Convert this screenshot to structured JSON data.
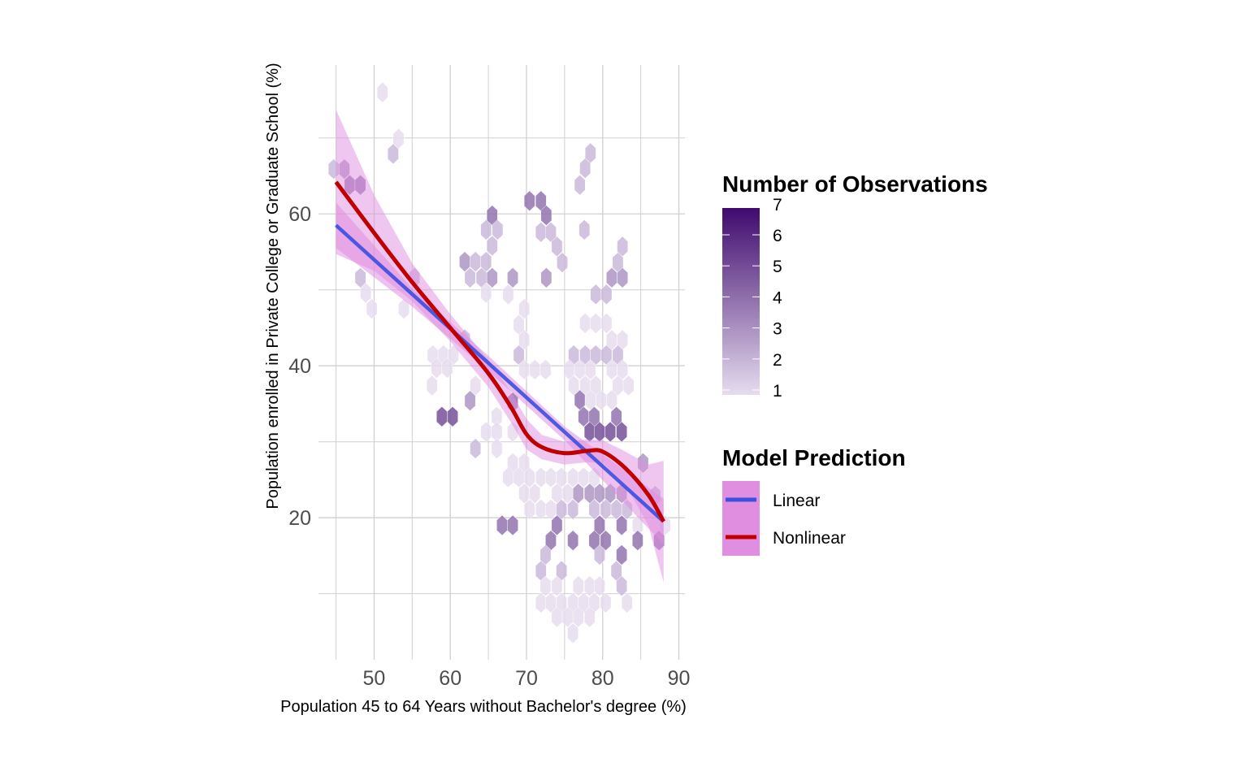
{
  "chart_data": {
    "type": "hexbin-scatter",
    "xlabel": "Population 45 to 64 Years without Bachelor's degree (%)",
    "ylabel": "Population enrolled in Private College or Graduate School (%)",
    "xlim": [
      42.7,
      90.8
    ],
    "ylim": [
      1.3,
      79.6
    ],
    "xticks": [
      50,
      60,
      70,
      80,
      90
    ],
    "yticks": [
      20,
      40,
      60
    ],
    "grid": true,
    "hexbins": [
      [
        51.1,
        76.0,
        1
      ],
      [
        53.2,
        69.9,
        1
      ],
      [
        52.5,
        67.9,
        2
      ],
      [
        44.7,
        65.9,
        2
      ],
      [
        46.1,
        65.9,
        3
      ],
      [
        46.8,
        63.8,
        4
      ],
      [
        48.2,
        63.8,
        4
      ],
      [
        48.2,
        51.6,
        2
      ],
      [
        48.9,
        49.6,
        1
      ],
      [
        49.7,
        47.5,
        1
      ],
      [
        53.9,
        47.5,
        1
      ],
      [
        55.3,
        51.6,
        2
      ],
      [
        65.5,
        59.8,
        4
      ],
      [
        64.7,
        57.9,
        2
      ],
      [
        66.2,
        57.9,
        2
      ],
      [
        65.5,
        55.8,
        2
      ],
      [
        61.9,
        53.7,
        3
      ],
      [
        63.3,
        53.7,
        2
      ],
      [
        64.7,
        53.7,
        2
      ],
      [
        62.6,
        51.6,
        2
      ],
      [
        64.1,
        51.6,
        2
      ],
      [
        65.5,
        51.6,
        3
      ],
      [
        64.7,
        49.6,
        1
      ],
      [
        57.7,
        41.4,
        1
      ],
      [
        59.1,
        41.4,
        1
      ],
      [
        60.4,
        41.4,
        1
      ],
      [
        58.2,
        39.7,
        1
      ],
      [
        59.6,
        39.7,
        1
      ],
      [
        61.9,
        43.5,
        2
      ],
      [
        57.6,
        37.4,
        1
      ],
      [
        62.6,
        35.4,
        3
      ],
      [
        58.9,
        33.3,
        5
      ],
      [
        60.3,
        33.3,
        5
      ],
      [
        63.3,
        29.1,
        2
      ],
      [
        63.3,
        37.4,
        1
      ],
      [
        66.1,
        33.3,
        1
      ],
      [
        64.7,
        31.3,
        1
      ],
      [
        66.1,
        31.3,
        1
      ],
      [
        68.2,
        31.3,
        1
      ],
      [
        66.1,
        29.1,
        1
      ],
      [
        68.2,
        35.2,
        4
      ],
      [
        78.4,
        68.0,
        2
      ],
      [
        77.7,
        66.0,
        2
      ],
      [
        77.0,
        63.8,
        2
      ],
      [
        70.4,
        61.7,
        4
      ],
      [
        71.9,
        61.7,
        4
      ],
      [
        72.6,
        59.8,
        4
      ],
      [
        71.9,
        57.6,
        2
      ],
      [
        73.2,
        57.6,
        2
      ],
      [
        74.0,
        55.7,
        2
      ],
      [
        74.7,
        53.6,
        2
      ],
      [
        77.6,
        57.9,
        2
      ],
      [
        82.6,
        55.7,
        2
      ],
      [
        82.0,
        53.6,
        2
      ],
      [
        81.2,
        51.6,
        3
      ],
      [
        82.6,
        51.6,
        3
      ],
      [
        68.2,
        51.6,
        3
      ],
      [
        72.6,
        51.6,
        3
      ],
      [
        67.6,
        49.4,
        1
      ],
      [
        79.1,
        49.4,
        2
      ],
      [
        80.5,
        49.4,
        2
      ],
      [
        69.7,
        47.5,
        1
      ],
      [
        69.0,
        45.4,
        1
      ],
      [
        69.7,
        43.4,
        1
      ],
      [
        69.0,
        41.4,
        2
      ],
      [
        69.7,
        39.5,
        1
      ],
      [
        71.1,
        39.5,
        1
      ],
      [
        72.5,
        39.5,
        1
      ],
      [
        77.7,
        45.6,
        1
      ],
      [
        79.1,
        45.6,
        1
      ],
      [
        80.5,
        45.6,
        1
      ],
      [
        81.2,
        43.4,
        1
      ],
      [
        82.6,
        43.4,
        1
      ],
      [
        76.2,
        41.4,
        2
      ],
      [
        77.7,
        41.4,
        2
      ],
      [
        79.1,
        41.4,
        2
      ],
      [
        80.5,
        41.4,
        2
      ],
      [
        82.0,
        41.4,
        2
      ],
      [
        75.6,
        39.5,
        1
      ],
      [
        77.0,
        39.5,
        1
      ],
      [
        78.4,
        39.5,
        1
      ],
      [
        81.2,
        39.5,
        1
      ],
      [
        82.6,
        39.5,
        1
      ],
      [
        76.2,
        37.4,
        1
      ],
      [
        77.7,
        37.4,
        1
      ],
      [
        79.1,
        37.4,
        1
      ],
      [
        82.0,
        37.4,
        1
      ],
      [
        83.4,
        37.4,
        1
      ],
      [
        77.0,
        35.5,
        4
      ],
      [
        78.4,
        35.5,
        1
      ],
      [
        79.8,
        35.5,
        1
      ],
      [
        81.2,
        35.5,
        1
      ],
      [
        77.5,
        33.3,
        4
      ],
      [
        78.9,
        33.3,
        4
      ],
      [
        81.8,
        33.3,
        4
      ],
      [
        78.3,
        31.3,
        5
      ],
      [
        79.6,
        31.3,
        5
      ],
      [
        81.0,
        31.3,
        5
      ],
      [
        82.5,
        31.3,
        5
      ],
      [
        68.2,
        27.2,
        1
      ],
      [
        69.7,
        27.2,
        1
      ],
      [
        85.3,
        27.2,
        3
      ],
      [
        67.6,
        25.3,
        1
      ],
      [
        69.0,
        25.3,
        1
      ],
      [
        70.4,
        25.3,
        1
      ],
      [
        71.9,
        25.3,
        1
      ],
      [
        73.2,
        25.3,
        1
      ],
      [
        74.6,
        25.3,
        1
      ],
      [
        76.1,
        25.3,
        1
      ],
      [
        77.5,
        25.3,
        1
      ],
      [
        78.9,
        25.3,
        1
      ],
      [
        69.7,
        23.2,
        1
      ],
      [
        71.1,
        23.2,
        1
      ],
      [
        74.0,
        23.2,
        1
      ],
      [
        75.4,
        23.2,
        1
      ],
      [
        76.8,
        23.2,
        3
      ],
      [
        78.3,
        23.2,
        3
      ],
      [
        79.6,
        23.2,
        3
      ],
      [
        81.0,
        23.2,
        3
      ],
      [
        82.5,
        23.2,
        3
      ],
      [
        86.9,
        22.9,
        2
      ],
      [
        70.4,
        21.1,
        1
      ],
      [
        71.9,
        21.1,
        1
      ],
      [
        73.2,
        21.1,
        1
      ],
      [
        74.6,
        21.1,
        2
      ],
      [
        76.1,
        21.1,
        2
      ],
      [
        78.9,
        21.1,
        2
      ],
      [
        80.4,
        21.1,
        2
      ],
      [
        81.8,
        21.1,
        2
      ],
      [
        83.2,
        21.1,
        2
      ],
      [
        66.8,
        19.0,
        4
      ],
      [
        68.2,
        19.0,
        4
      ],
      [
        74.0,
        19.0,
        4
      ],
      [
        79.6,
        19.0,
        4
      ],
      [
        82.5,
        19.0,
        4
      ],
      [
        84.6,
        19.0,
        1
      ],
      [
        88.2,
        19.0,
        1
      ],
      [
        73.2,
        17.0,
        4
      ],
      [
        76.1,
        17.0,
        4
      ],
      [
        78.9,
        17.0,
        4
      ],
      [
        80.4,
        17.0,
        4
      ],
      [
        84.6,
        17.0,
        4
      ],
      [
        87.4,
        17.0,
        4
      ],
      [
        72.5,
        15.1,
        2
      ],
      [
        79.6,
        15.1,
        2
      ],
      [
        82.5,
        15.1,
        4
      ],
      [
        71.9,
        13.0,
        2
      ],
      [
        74.6,
        13.0,
        2
      ],
      [
        81.8,
        13.0,
        2
      ],
      [
        72.5,
        11.0,
        1
      ],
      [
        74.0,
        11.0,
        1
      ],
      [
        76.8,
        11.0,
        1
      ],
      [
        78.3,
        11.0,
        1
      ],
      [
        79.6,
        11.0,
        1
      ],
      [
        82.5,
        11.0,
        2
      ],
      [
        71.9,
        8.8,
        1
      ],
      [
        73.2,
        8.8,
        1
      ],
      [
        74.6,
        8.8,
        1
      ],
      [
        76.1,
        8.8,
        1
      ],
      [
        77.5,
        8.8,
        1
      ],
      [
        78.9,
        8.8,
        1
      ],
      [
        80.4,
        8.8,
        1
      ],
      [
        83.2,
        8.8,
        1
      ],
      [
        74.0,
        6.9,
        1
      ],
      [
        75.4,
        6.9,
        1
      ],
      [
        76.8,
        6.9,
        1
      ],
      [
        78.3,
        6.9,
        1
      ],
      [
        76.1,
        4.8,
        1
      ]
    ],
    "series": [
      {
        "name": "Linear",
        "color": "#3b4fe0",
        "x": [
          45,
          88
        ],
        "y": [
          58.5,
          19.5
        ],
        "ci_lower": [
          [
            45,
            55.5
          ],
          [
            55,
            47.8
          ],
          [
            65,
            39.3
          ],
          [
            75,
            30.2
          ],
          [
            88,
            16.5
          ]
        ],
        "ci_upper": [
          [
            45,
            61.5
          ],
          [
            55,
            50.2
          ],
          [
            65,
            41.3
          ],
          [
            75,
            32.0
          ],
          [
            88,
            22.5
          ]
        ]
      },
      {
        "name": "Nonlinear",
        "color": "#c00000",
        "x": [
          45,
          50,
          55,
          60,
          65,
          68,
          70,
          72,
          75,
          78,
          80,
          83,
          86,
          88
        ],
        "y": [
          64.2,
          57.5,
          51.0,
          45.0,
          39.0,
          34.5,
          31.0,
          29.3,
          28.5,
          28.8,
          28.7,
          26.5,
          23.0,
          19.5
        ],
        "ci_half_width": [
          9.5,
          5.0,
          2.5,
          1.8,
          1.8,
          2.0,
          2.0,
          1.6,
          1.5,
          1.5,
          1.5,
          2.2,
          4.0,
          8.0
        ]
      }
    ],
    "legend": {
      "placement": "right",
      "count_title": "Number of Observations",
      "count_ticks": [
        "1",
        "2",
        "3",
        "4",
        "5",
        "6",
        "7"
      ],
      "count_colors": {
        "low": "#e6dcef",
        "high": "#3f0a6e"
      },
      "model_title": "Model Prediction",
      "model_items": [
        "Linear",
        "Nonlinear"
      ],
      "ribbon_color": "#e08ee0"
    }
  }
}
